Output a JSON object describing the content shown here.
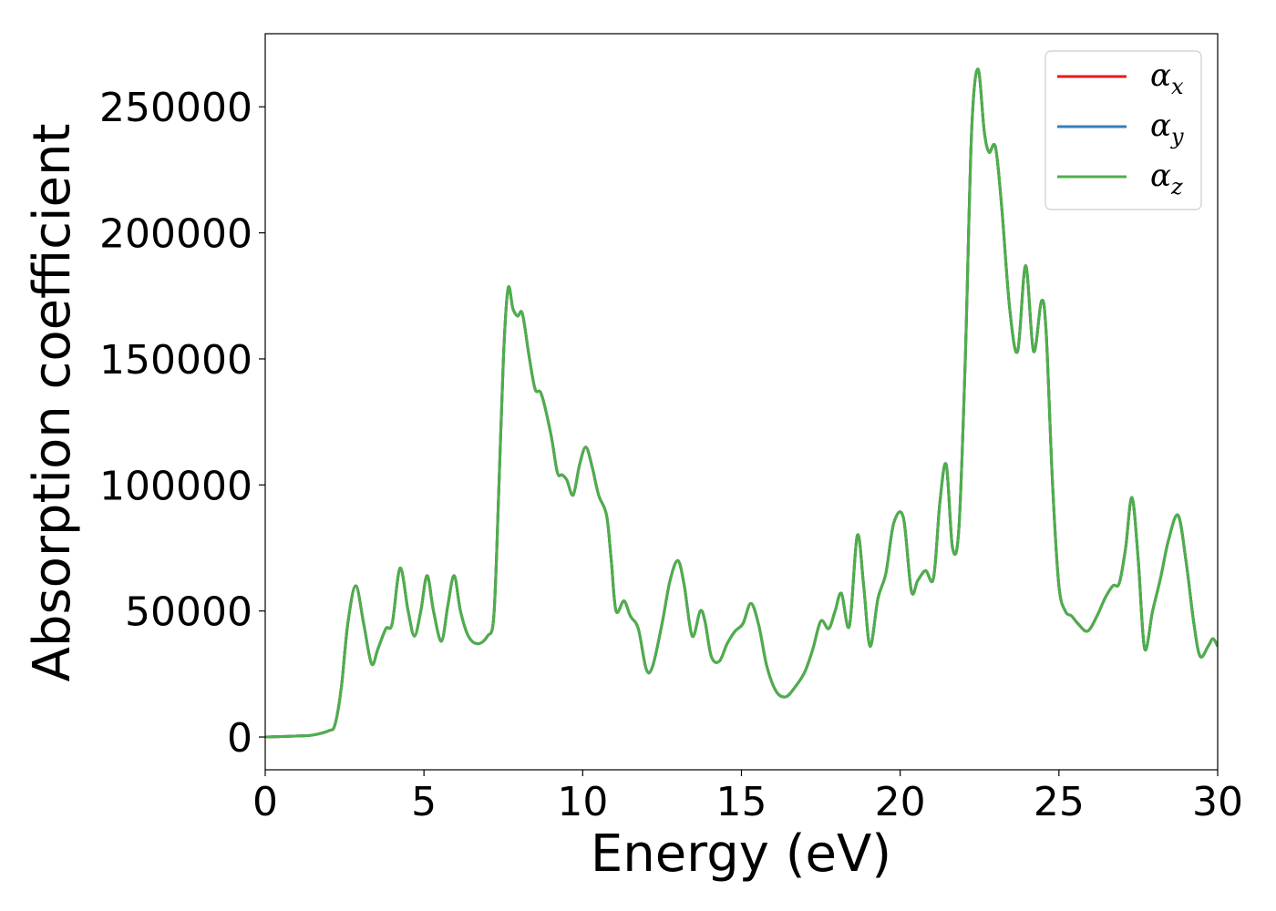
{
  "chart_data": {
    "type": "line",
    "title": "",
    "xlabel": "Energy (eV)",
    "ylabel": "Absorption coefficient",
    "xlim": [
      0,
      30
    ],
    "ylim": [
      -13000,
      279000
    ],
    "xticks": [
      0,
      5,
      10,
      15,
      20,
      25,
      30
    ],
    "yticks": [
      0,
      50000,
      100000,
      150000,
      200000,
      250000
    ],
    "xtick_labels": [
      "0",
      "5",
      "10",
      "15",
      "20",
      "25",
      "30"
    ],
    "ytick_labels": [
      "0",
      "50000",
      "100000",
      "150000",
      "200000",
      "250000"
    ],
    "grid": false,
    "legend": {
      "placement": "top-right",
      "entries": [
        {
          "symbol": "α",
          "subscript": "x",
          "color": "#e41a1c"
        },
        {
          "symbol": "α",
          "subscript": "y",
          "color": "#377eb8"
        },
        {
          "symbol": "α",
          "subscript": "z",
          "color": "#4daf4a"
        }
      ]
    },
    "x": [
      0,
      1.0,
      1.5,
      2.0,
      2.2,
      2.4,
      2.6,
      2.85,
      3.1,
      3.35,
      3.55,
      3.8,
      4.0,
      4.25,
      4.5,
      4.7,
      4.9,
      5.1,
      5.3,
      5.55,
      5.75,
      5.95,
      6.15,
      6.4,
      6.7,
      7.0,
      7.2,
      7.35,
      7.5,
      7.65,
      7.8,
      7.95,
      8.1,
      8.3,
      8.5,
      8.7,
      9.0,
      9.2,
      9.35,
      9.5,
      9.7,
      9.9,
      10.1,
      10.3,
      10.5,
      10.75,
      10.9,
      11.05,
      11.3,
      11.5,
      11.75,
      12.0,
      12.2,
      12.5,
      12.75,
      13.0,
      13.2,
      13.45,
      13.7,
      13.85,
      14.05,
      14.3,
      14.55,
      14.8,
      15.05,
      15.3,
      15.55,
      15.8,
      16.1,
      16.4,
      16.7,
      17.0,
      17.25,
      17.5,
      17.75,
      17.95,
      18.15,
      18.4,
      18.65,
      18.85,
      19.05,
      19.3,
      19.55,
      19.8,
      20.1,
      20.35,
      20.55,
      20.8,
      21.05,
      21.25,
      21.45,
      21.65,
      21.85,
      22.05,
      22.25,
      22.45,
      22.65,
      22.8,
      23.0,
      23.2,
      23.45,
      23.7,
      23.95,
      24.2,
      24.45,
      24.6,
      24.8,
      25.0,
      25.2,
      25.4,
      25.6,
      25.9,
      26.2,
      26.45,
      26.7,
      26.9,
      27.1,
      27.3,
      27.5,
      27.7,
      27.95,
      28.2,
      28.45,
      28.75,
      29.0,
      29.25,
      29.45,
      29.7,
      29.85,
      30.0
    ],
    "series": [
      {
        "name": "α_x",
        "color": "#e41a1c"
      },
      {
        "name": "α_y",
        "color": "#377eb8"
      },
      {
        "name": "α_z",
        "color": "#4daf4a"
      }
    ],
    "values": [
      0,
      400,
      800,
      2500,
      5000,
      20000,
      45000,
      60000,
      45000,
      29000,
      35000,
      43000,
      45000,
      67000,
      50000,
      40000,
      50000,
      64000,
      50000,
      38000,
      52000,
      64000,
      50000,
      40000,
      37000,
      40000,
      48000,
      95000,
      150000,
      178000,
      170000,
      167000,
      168000,
      152000,
      138000,
      136000,
      120000,
      105000,
      104000,
      102000,
      96000,
      108000,
      115000,
      107000,
      96000,
      88000,
      70000,
      50000,
      54000,
      48000,
      43000,
      27000,
      28000,
      45000,
      62000,
      70000,
      60000,
      40000,
      50000,
      46000,
      32000,
      30000,
      37000,
      42000,
      45000,
      53000,
      44000,
      28000,
      18000,
      16000,
      20000,
      26000,
      35000,
      46000,
      43000,
      50000,
      57000,
      44000,
      80000,
      60000,
      36000,
      55000,
      65000,
      85000,
      87000,
      58000,
      62000,
      66000,
      63000,
      93000,
      108000,
      75000,
      83000,
      150000,
      240000,
      265000,
      240000,
      232000,
      234000,
      210000,
      170000,
      153000,
      187000,
      153000,
      173000,
      160000,
      100000,
      60000,
      50000,
      48000,
      45000,
      42000,
      48000,
      55000,
      60000,
      61000,
      75000,
      95000,
      70000,
      35000,
      50000,
      63000,
      78000,
      88000,
      70000,
      45000,
      32000,
      36000,
      39000,
      36000
    ]
  }
}
